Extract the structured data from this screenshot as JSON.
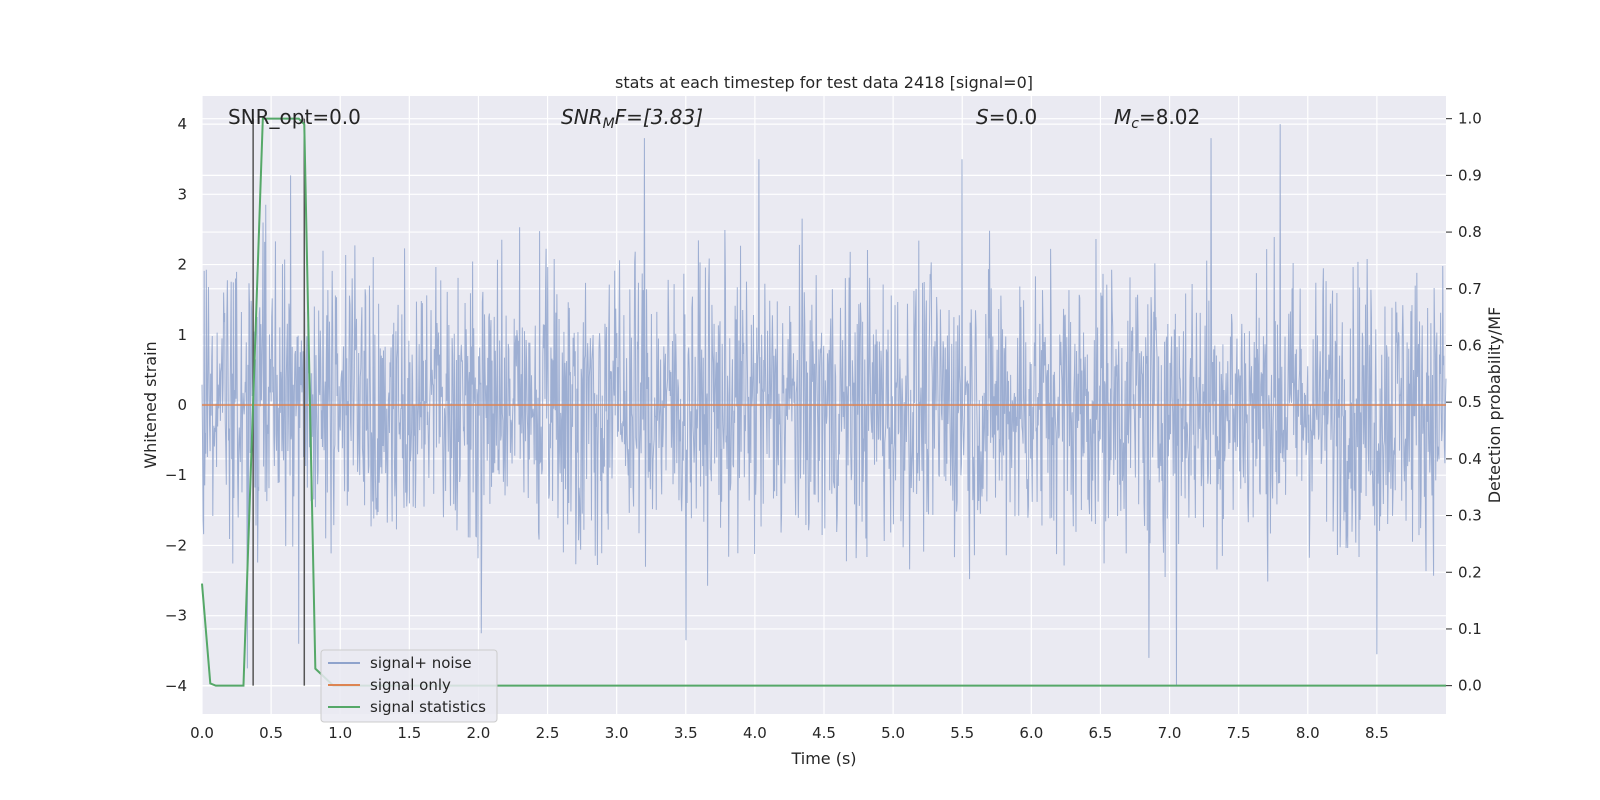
{
  "chart_data": {
    "type": "line",
    "title": "stats at each timestep for test data 2418 [signal=0]",
    "xlabel": "Time (s)",
    "ylabel": "Whitened strain",
    "ylabel_right": "Detection probability/MF",
    "xlim": [
      0.0,
      9.0
    ],
    "ylim": [
      -4.4,
      4.4
    ],
    "ylim_right": [
      -0.05,
      1.04
    ],
    "x_ticks": [
      "0.0",
      "0.5",
      "1.0",
      "1.5",
      "2.0",
      "2.5",
      "3.0",
      "3.5",
      "4.0",
      "4.5",
      "5.0",
      "5.5",
      "6.0",
      "6.5",
      "7.0",
      "7.5",
      "8.0",
      "8.5"
    ],
    "y_ticks": [
      "−4",
      "−3",
      "−2",
      "−1",
      "0",
      "1",
      "2",
      "3",
      "4"
    ],
    "y_ticks_right": [
      "0.0",
      "0.1",
      "0.2",
      "0.3",
      "0.4",
      "0.5",
      "0.6",
      "0.7",
      "0.8",
      "0.9",
      "1.0"
    ],
    "grid": true,
    "legend_position": "bottom-left",
    "annotations": {
      "snr_opt": "SNR_opt=0.0",
      "snr_mf_label": "SNR",
      "snr_mf_sub": "M",
      "snr_mf_rest": "F=[3.83]",
      "s_label": "S",
      "s_rest": "=0.0",
      "mc_label": "M",
      "mc_sub": "c",
      "mc_rest": "=8.02"
    },
    "vlines_x": [
      0.37,
      0.74
    ],
    "series": [
      {
        "name": "signal+ noise",
        "color": "#8fa3cc",
        "kind": "noise",
        "sample_count": 2304,
        "amplitude_std": 1.0,
        "peak_points": [
          [
            0.33,
            -3.75
          ],
          [
            0.7,
            -3.4
          ],
          [
            0.64,
            3.27
          ],
          [
            2.02,
            -3.25
          ],
          [
            3.2,
            3.8
          ],
          [
            3.5,
            -3.35
          ],
          [
            4.03,
            3.5
          ],
          [
            5.5,
            3.5
          ],
          [
            7.05,
            -4.0
          ],
          [
            7.3,
            3.8
          ],
          [
            7.8,
            4.0
          ],
          [
            8.5,
            -3.55
          ],
          [
            6.85,
            -3.6
          ]
        ]
      },
      {
        "name": "signal only",
        "color": "#dd8452",
        "kind": "line",
        "x": [
          0.0,
          9.0
        ],
        "y": [
          0.0,
          0.0
        ]
      },
      {
        "name": "signal statistics",
        "color": "#55a868",
        "kind": "line",
        "axis": "right",
        "x": [
          0.0,
          0.06,
          0.1,
          0.3,
          0.44,
          0.55,
          0.7,
          0.74,
          0.82,
          0.95,
          2.0,
          4.0,
          6.0,
          8.0,
          9.0
        ],
        "y": [
          0.18,
          0.004,
          0.0,
          0.0,
          1.0,
          1.0,
          1.0,
          0.99,
          0.03,
          0.0,
          0.0,
          0.0,
          0.0,
          0.0,
          0.0
        ]
      }
    ]
  }
}
